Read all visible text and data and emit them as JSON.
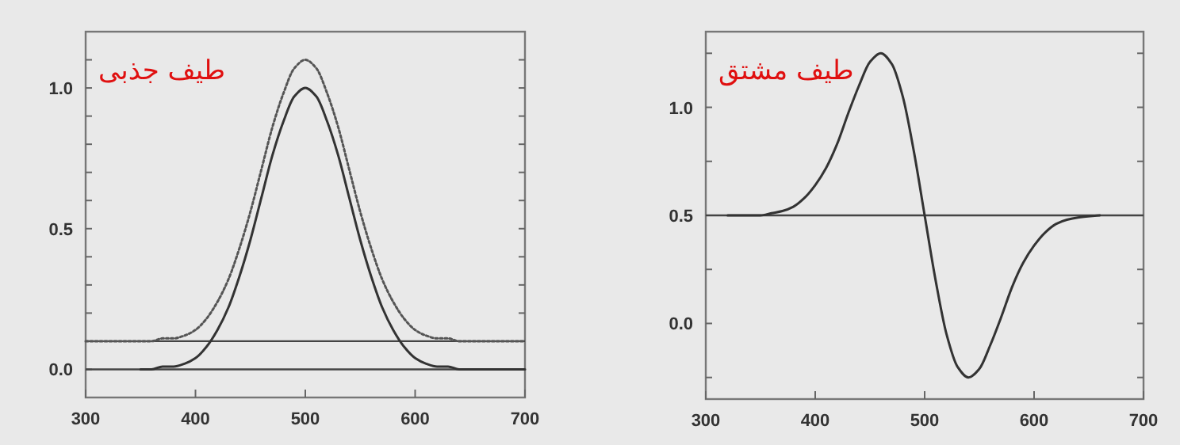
{
  "chart_data": [
    {
      "type": "line",
      "xlim": [
        300,
        700
      ],
      "ylim": [
        -0.1,
        1.2
      ],
      "xticks": [
        300,
        400,
        500,
        600,
        700
      ],
      "yticks": [
        {
          "value": 0,
          "label": "0.0"
        },
        {
          "value": 0.1,
          "label": null
        },
        {
          "value": 0.2,
          "label": null
        },
        {
          "value": 0.3,
          "label": null
        },
        {
          "value": 0.4,
          "label": null
        },
        {
          "value": 0.5,
          "label": "0.5"
        },
        {
          "value": 0.6,
          "label": null
        },
        {
          "value": 0.7,
          "label": null
        },
        {
          "value": 0.8,
          "label": null
        },
        {
          "value": 0.9,
          "label": null
        },
        {
          "value": 1.0,
          "label": "1.0"
        },
        {
          "value": 1.1,
          "label": null
        }
      ],
      "series": [
        {
          "color": "#333333",
          "line_style": "solid",
          "x": [
            350,
            360,
            370,
            380,
            390,
            400,
            410,
            420,
            430,
            440,
            450,
            460,
            470,
            480,
            490,
            500,
            510,
            520,
            530,
            540,
            550,
            560,
            570,
            580,
            590,
            600,
            610,
            620,
            630,
            640,
            660,
            680,
            700
          ],
          "values": [
            0.0,
            0.0,
            0.01,
            0.01,
            0.02,
            0.04,
            0.08,
            0.14,
            0.22,
            0.33,
            0.46,
            0.61,
            0.76,
            0.88,
            0.97,
            1.0,
            0.97,
            0.88,
            0.76,
            0.61,
            0.46,
            0.33,
            0.22,
            0.14,
            0.08,
            0.04,
            0.02,
            0.01,
            0.01,
            0.0,
            0.0,
            0.0,
            0.0
          ]
        },
        {
          "color": "#555555",
          "line_style": "dotted",
          "x": [
            300,
            340,
            360,
            370,
            380,
            390,
            400,
            410,
            420,
            430,
            440,
            450,
            460,
            470,
            480,
            490,
            500,
            510,
            520,
            530,
            540,
            550,
            560,
            570,
            580,
            590,
            600,
            610,
            620,
            630,
            640,
            660,
            700
          ],
          "values": [
            0.1,
            0.1,
            0.1,
            0.11,
            0.11,
            0.12,
            0.14,
            0.18,
            0.24,
            0.32,
            0.43,
            0.56,
            0.71,
            0.86,
            0.98,
            1.07,
            1.1,
            1.07,
            0.98,
            0.86,
            0.71,
            0.56,
            0.43,
            0.32,
            0.24,
            0.18,
            0.14,
            0.12,
            0.11,
            0.11,
            0.1,
            0.1,
            0.1
          ]
        }
      ],
      "ref_lines": [
        {
          "axis": "y",
          "value": 0,
          "color": "#444444"
        },
        {
          "axis": "y",
          "value": 0.1,
          "color": "#444444"
        }
      ],
      "annotations": [
        "طیف جذبی"
      ]
    },
    {
      "type": "line",
      "xlim": [
        300,
        700
      ],
      "ylim": [
        -0.35,
        1.35
      ],
      "xticks": [
        300,
        400,
        500,
        600,
        700
      ],
      "yticks": [
        {
          "value": -0.25,
          "label": null
        },
        {
          "value": 0,
          "label": "0.0"
        },
        {
          "value": 0.25,
          "label": null
        },
        {
          "value": 0.5,
          "label": "0.5"
        },
        {
          "value": 0.75,
          "label": null
        },
        {
          "value": 1.0,
          "label": "1.0"
        },
        {
          "value": 1.25,
          "label": null
        }
      ],
      "series": [
        {
          "color": "#333333",
          "line_style": "solid",
          "x": [
            320,
            340,
            350,
            360,
            370,
            380,
            390,
            400,
            410,
            420,
            430,
            440,
            450,
            460,
            470,
            480,
            490,
            500,
            510,
            520,
            530,
            540,
            550,
            560,
            570,
            580,
            590,
            600,
            610,
            620,
            630,
            640,
            660
          ],
          "values": [
            0.5,
            0.5,
            0.5,
            0.51,
            0.52,
            0.54,
            0.58,
            0.64,
            0.72,
            0.83,
            0.97,
            1.1,
            1.21,
            1.25,
            1.2,
            1.05,
            0.8,
            0.5,
            0.2,
            -0.05,
            -0.2,
            -0.25,
            -0.21,
            -0.1,
            0.03,
            0.17,
            0.28,
            0.36,
            0.42,
            0.46,
            0.48,
            0.49,
            0.5
          ]
        }
      ],
      "ref_lines": [
        {
          "axis": "y",
          "value": 0.5,
          "color": "#444444"
        }
      ],
      "annotations": [
        "طیف مشتق"
      ]
    }
  ]
}
